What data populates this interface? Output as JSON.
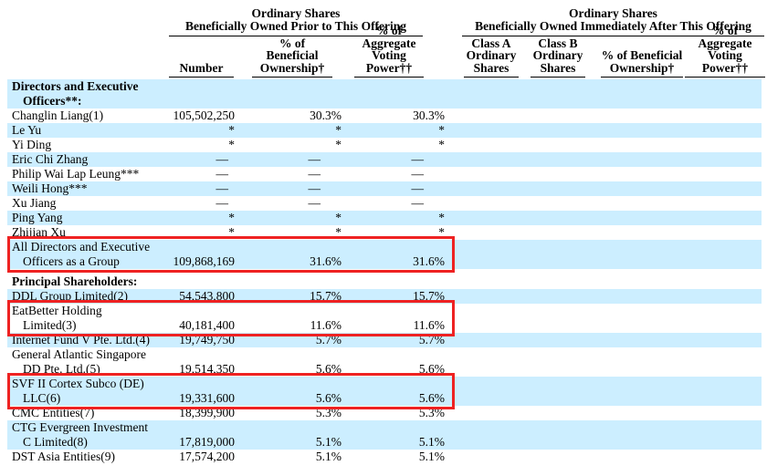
{
  "colors": {
    "row_highlight": "#cceeff",
    "annotation_box": "#ee2222",
    "header_rule": "#000000",
    "text": "#000000"
  },
  "header": {
    "prior_group": {
      "line1": "Ordinary Shares",
      "line2": "Beneficially Owned Prior to This Offering"
    },
    "after_group": {
      "line1": "Ordinary Shares",
      "line2": "Beneficially Owned Immediately After This Offering"
    },
    "columns": [
      {
        "id": "number",
        "lines": [
          "Number"
        ]
      },
      {
        "id": "pct-beneficial-prior",
        "lines": [
          "% of Beneficial",
          "Ownership†"
        ]
      },
      {
        "id": "pct-voting-prior",
        "lines": [
          "% of Aggregate",
          "Voting",
          "Power††"
        ]
      },
      {
        "id": "class-a",
        "lines": [
          "Class A",
          "Ordinary",
          "Shares"
        ]
      },
      {
        "id": "class-b",
        "lines": [
          "Class B",
          "Ordinary",
          "Shares"
        ]
      },
      {
        "id": "pct-beneficial-after",
        "lines": [
          "% of Beneficial",
          "Ownership†"
        ]
      },
      {
        "id": "pct-voting-after",
        "lines": [
          "% of Aggregate",
          "Voting",
          "Power††"
        ]
      }
    ]
  },
  "rows": [
    {
      "type": "section",
      "name_lines": [
        "Directors and Executive",
        "Officers**:"
      ],
      "shaded": true,
      "boxed": false
    },
    {
      "type": "data",
      "name_lines": [
        "Changlin Liang(1)"
      ],
      "number": "105,502,250",
      "pct_beneficial_prior": "30.3%",
      "pct_voting_prior": "30.3%",
      "class_a_after": "",
      "class_b_after": "",
      "pct_beneficial_after": "",
      "pct_voting_after": "",
      "shaded": false,
      "boxed": false
    },
    {
      "type": "data",
      "name_lines": [
        "Le Yu"
      ],
      "number": "*",
      "pct_beneficial_prior": "*",
      "pct_voting_prior": "*",
      "class_a_after": "",
      "class_b_after": "",
      "pct_beneficial_after": "",
      "pct_voting_after": "",
      "shaded": true,
      "boxed": false
    },
    {
      "type": "data",
      "name_lines": [
        "Yi Ding"
      ],
      "number": "*",
      "pct_beneficial_prior": "*",
      "pct_voting_prior": "*",
      "class_a_after": "",
      "class_b_after": "",
      "pct_beneficial_after": "",
      "pct_voting_after": "",
      "shaded": false,
      "boxed": false
    },
    {
      "type": "data",
      "name_lines": [
        "Eric Chi Zhang"
      ],
      "number": "—",
      "pct_beneficial_prior": "—",
      "pct_voting_prior": "—",
      "class_a_after": "",
      "class_b_after": "",
      "pct_beneficial_after": "",
      "pct_voting_after": "",
      "shaded": true,
      "boxed": false
    },
    {
      "type": "data",
      "name_lines": [
        "Philip Wai Lap Leung***"
      ],
      "number": "—",
      "pct_beneficial_prior": "—",
      "pct_voting_prior": "—",
      "class_a_after": "",
      "class_b_after": "",
      "pct_beneficial_after": "",
      "pct_voting_after": "",
      "shaded": false,
      "boxed": false
    },
    {
      "type": "data",
      "name_lines": [
        "Weili Hong***"
      ],
      "number": "—",
      "pct_beneficial_prior": "—",
      "pct_voting_prior": "—",
      "class_a_after": "",
      "class_b_after": "",
      "pct_beneficial_after": "",
      "pct_voting_after": "",
      "shaded": true,
      "boxed": false
    },
    {
      "type": "data",
      "name_lines": [
        "Xu Jiang"
      ],
      "number": "—",
      "pct_beneficial_prior": "—",
      "pct_voting_prior": "—",
      "class_a_after": "",
      "class_b_after": "",
      "pct_beneficial_after": "",
      "pct_voting_after": "",
      "shaded": false,
      "boxed": false
    },
    {
      "type": "data",
      "name_lines": [
        "Ping Yang"
      ],
      "number": "*",
      "pct_beneficial_prior": "*",
      "pct_voting_prior": "*",
      "class_a_after": "",
      "class_b_after": "",
      "pct_beneficial_after": "",
      "pct_voting_after": "",
      "shaded": true,
      "boxed": false
    },
    {
      "type": "data",
      "name_lines": [
        "Zhijian Xu"
      ],
      "number": "*",
      "pct_beneficial_prior": "*",
      "pct_voting_prior": "*",
      "class_a_after": "",
      "class_b_after": "",
      "pct_beneficial_after": "",
      "pct_voting_after": "",
      "shaded": false,
      "boxed": false
    },
    {
      "type": "data",
      "name_lines": [
        "All Directors and Executive",
        "Officers as a Group"
      ],
      "number": "109,868,169",
      "pct_beneficial_prior": "31.6%",
      "pct_voting_prior": "31.6%",
      "class_a_after": "",
      "class_b_after": "",
      "pct_beneficial_after": "",
      "pct_voting_after": "",
      "shaded": true,
      "boxed": true
    },
    {
      "type": "spacer"
    },
    {
      "type": "section",
      "name_lines": [
        "Principal Shareholders:"
      ],
      "shaded": false,
      "boxed": false
    },
    {
      "type": "data",
      "name_lines": [
        "DDL Group Limited(2)"
      ],
      "number": "54,543,800",
      "pct_beneficial_prior": "15.7%",
      "pct_voting_prior": "15.7%",
      "class_a_after": "",
      "class_b_after": "",
      "pct_beneficial_after": "",
      "pct_voting_after": "",
      "shaded": true,
      "boxed": false
    },
    {
      "type": "data",
      "name_lines": [
        "EatBetter Holding",
        "Limited(3)"
      ],
      "number": "40,181,400",
      "pct_beneficial_prior": "11.6%",
      "pct_voting_prior": "11.6%",
      "class_a_after": "",
      "class_b_after": "",
      "pct_beneficial_after": "",
      "pct_voting_after": "",
      "shaded": false,
      "boxed": true
    },
    {
      "type": "data",
      "name_lines": [
        "Internet Fund V Pte. Ltd.(4)"
      ],
      "number": "19,749,750",
      "pct_beneficial_prior": "5.7%",
      "pct_voting_prior": "5.7%",
      "class_a_after": "",
      "class_b_after": "",
      "pct_beneficial_after": "",
      "pct_voting_after": "",
      "shaded": true,
      "boxed": false
    },
    {
      "type": "data",
      "name_lines": [
        "General Atlantic Singapore",
        "DD Pte. Ltd.(5)"
      ],
      "number": "19,514,350",
      "pct_beneficial_prior": "5.6%",
      "pct_voting_prior": "5.6%",
      "class_a_after": "",
      "class_b_after": "",
      "pct_beneficial_after": "",
      "pct_voting_after": "",
      "shaded": false,
      "boxed": false
    },
    {
      "type": "data",
      "name_lines": [
        "SVF II Cortex Subco (DE)",
        "LLC(6)"
      ],
      "number": "19,331,600",
      "pct_beneficial_prior": "5.6%",
      "pct_voting_prior": "5.6%",
      "class_a_after": "",
      "class_b_after": "",
      "pct_beneficial_after": "",
      "pct_voting_after": "",
      "shaded": true,
      "boxed": true
    },
    {
      "type": "data",
      "name_lines": [
        "CMC Entities(7)"
      ],
      "number": "18,399,900",
      "pct_beneficial_prior": "5.3%",
      "pct_voting_prior": "5.3%",
      "class_a_after": "",
      "class_b_after": "",
      "pct_beneficial_after": "",
      "pct_voting_after": "",
      "shaded": false,
      "boxed": false
    },
    {
      "type": "data",
      "name_lines": [
        "CTG Evergreen Investment",
        "C Limited(8)"
      ],
      "number": "17,819,000",
      "pct_beneficial_prior": "5.1%",
      "pct_voting_prior": "5.1%",
      "class_a_after": "",
      "class_b_after": "",
      "pct_beneficial_after": "",
      "pct_voting_after": "",
      "shaded": true,
      "boxed": false
    },
    {
      "type": "data",
      "name_lines": [
        "DST Asia Entities(9)"
      ],
      "number": "17,574,200",
      "pct_beneficial_prior": "5.1%",
      "pct_voting_prior": "5.1%",
      "class_a_after": "",
      "class_b_after": "",
      "pct_beneficial_after": "",
      "pct_voting_after": "",
      "shaded": false,
      "boxed": false
    }
  ]
}
